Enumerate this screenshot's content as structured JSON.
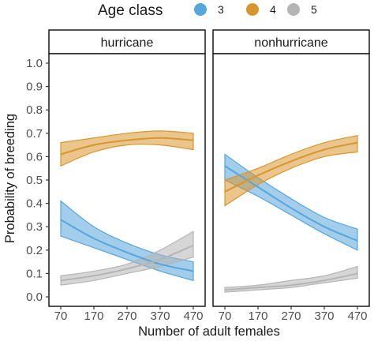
{
  "chart_data": {
    "type": "line",
    "xlabel": "Number of adult females",
    "ylabel": "Probability of breeding",
    "xlim": [
      70,
      470
    ],
    "ylim": [
      0,
      1.0
    ],
    "x_ticks": [
      70,
      170,
      270,
      370,
      470
    ],
    "x_tick_labels": [
      "70",
      "170",
      "270",
      "370",
      "470"
    ],
    "y_ticks": [
      0,
      0.1,
      0.2,
      0.3,
      0.4,
      0.5,
      0.6,
      0.7,
      0.8,
      0.9,
      1.0
    ],
    "y_tick_labels": [
      "0.0",
      "0.1",
      "0.2",
      "0.3",
      "0.4",
      "0.5",
      "0.6",
      "0.7",
      "0.8",
      "0.9",
      "1.0"
    ],
    "legend": {
      "title": "Age class",
      "position": "top",
      "entries": [
        {
          "label": "3",
          "color": "#56a6dc"
        },
        {
          "label": "4",
          "color": "#d8962e"
        },
        {
          "label": "5",
          "color": "#b5b5b5"
        }
      ]
    },
    "panels": [
      {
        "title": "hurricane",
        "series": [
          {
            "name": "3",
            "x": [
              70,
              170,
              270,
              370,
              470
            ],
            "y": [
              0.33,
              0.25,
              0.19,
              0.14,
              0.11
            ],
            "lower": [
              0.26,
              0.21,
              0.16,
              0.11,
              0.07
            ],
            "upper": [
              0.41,
              0.3,
              0.23,
              0.18,
              0.15
            ]
          },
          {
            "name": "4",
            "x": [
              70,
              170,
              270,
              370,
              470
            ],
            "y": [
              0.61,
              0.65,
              0.67,
              0.68,
              0.67
            ],
            "lower": [
              0.56,
              0.62,
              0.65,
              0.65,
              0.63
            ],
            "upper": [
              0.66,
              0.68,
              0.7,
              0.71,
              0.7
            ]
          },
          {
            "name": "5",
            "x": [
              70,
              170,
              270,
              370,
              470
            ],
            "y": [
              0.07,
              0.09,
              0.12,
              0.16,
              0.22
            ],
            "lower": [
              0.05,
              0.07,
              0.1,
              0.13,
              0.17
            ],
            "upper": [
              0.09,
              0.11,
              0.14,
              0.2,
              0.28
            ]
          }
        ]
      },
      {
        "title": "nonhurricane",
        "series": [
          {
            "name": "3",
            "x": [
              70,
              170,
              270,
              370,
              470
            ],
            "y": [
              0.56,
              0.47,
              0.38,
              0.3,
              0.24
            ],
            "lower": [
              0.5,
              0.43,
              0.35,
              0.27,
              0.2
            ],
            "upper": [
              0.61,
              0.51,
              0.42,
              0.34,
              0.29
            ]
          },
          {
            "name": "4",
            "x": [
              70,
              170,
              270,
              370,
              470
            ],
            "y": [
              0.45,
              0.52,
              0.58,
              0.63,
              0.66
            ],
            "lower": [
              0.39,
              0.48,
              0.55,
              0.6,
              0.62
            ],
            "upper": [
              0.5,
              0.55,
              0.61,
              0.66,
              0.69
            ]
          },
          {
            "name": "5",
            "x": [
              70,
              170,
              270,
              370,
              470
            ],
            "y": [
              0.03,
              0.04,
              0.05,
              0.07,
              0.1
            ],
            "lower": [
              0.02,
              0.03,
              0.04,
              0.06,
              0.08
            ],
            "upper": [
              0.04,
              0.05,
              0.07,
              0.09,
              0.13
            ]
          }
        ]
      }
    ]
  }
}
